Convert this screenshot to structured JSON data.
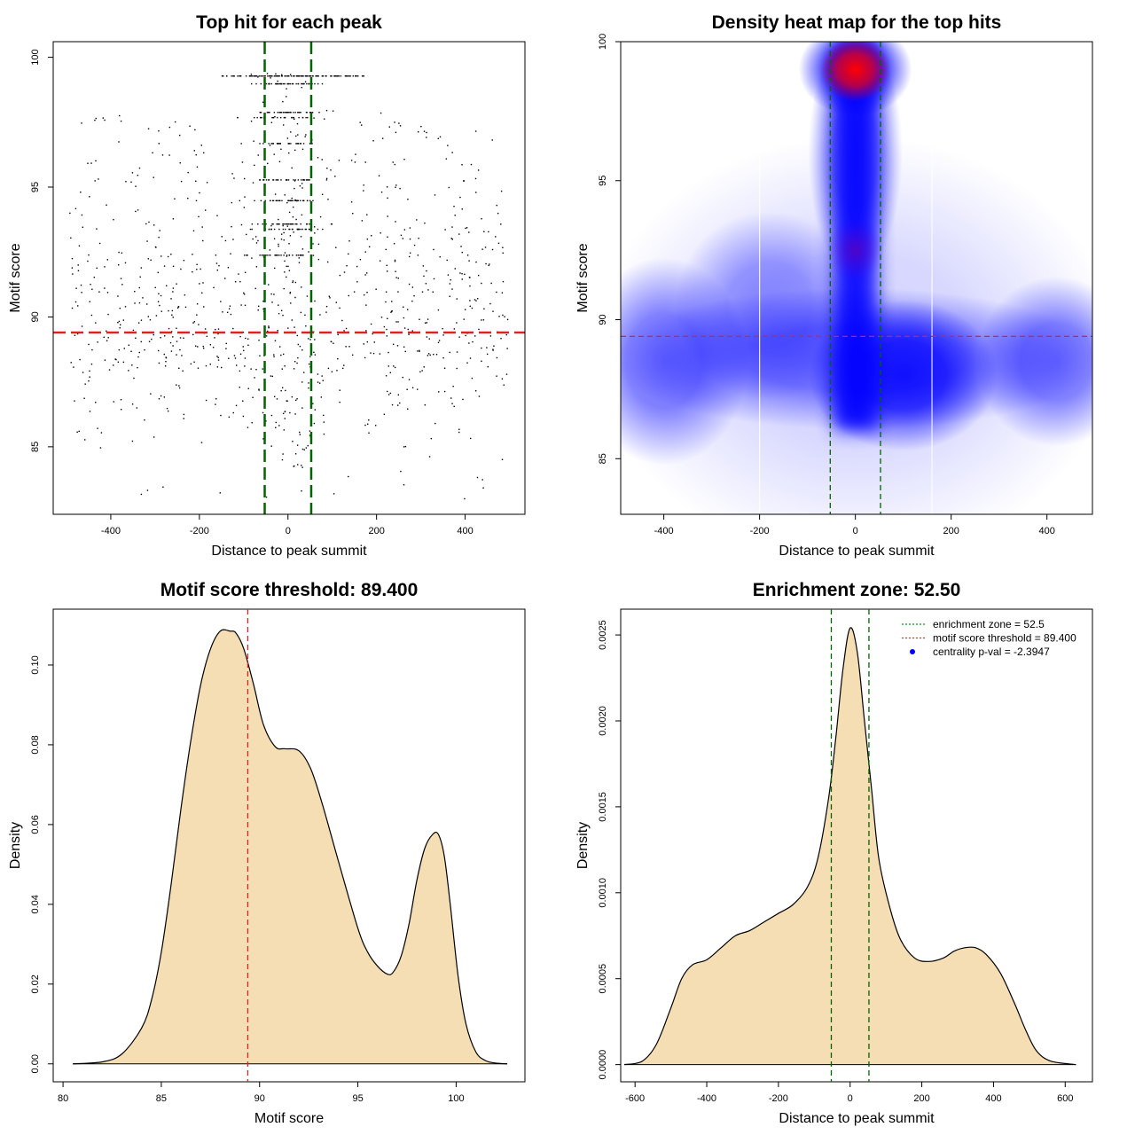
{
  "chart_data": [
    {
      "type": "scatter",
      "title": "Top hit for each peak",
      "xlabel": "Distance to peak summit",
      "ylabel": "Motif score",
      "xlim": [
        -530,
        535
      ],
      "ylim": [
        82.4,
        100.6
      ],
      "xticks": [
        "-400",
        "-200",
        "0",
        "200",
        "400"
      ],
      "xtick_values": [
        -400,
        -200,
        0,
        200,
        400
      ],
      "yticks": [
        "85",
        "90",
        "95",
        "100"
      ],
      "ytick_values": [
        85,
        90,
        95,
        100
      ],
      "threshold_y": 89.4,
      "threshold_color": "#dd2222",
      "zone_x": [
        -52.5,
        52.5
      ],
      "zone_color": "#006400",
      "point_count": 1400,
      "discrete_scores": [
        99.3,
        99.0,
        97.9,
        97.7,
        96.7,
        95.3,
        94.5,
        93.6,
        93.4,
        92.4
      ]
    },
    {
      "type": "heatmap",
      "title": "Density heat map for the top hits",
      "xlabel": "Distance to peak summit",
      "ylabel": "Motif score",
      "xlim": [
        -490,
        495
      ],
      "ylim": [
        83,
        100
      ],
      "xticks": [
        "-400",
        "-200",
        "0",
        "200",
        "400"
      ],
      "xtick_values": [
        -400,
        -200,
        0,
        200,
        400
      ],
      "yticks": [
        "85",
        "90",
        "95",
        "100"
      ],
      "ytick_values": [
        85,
        90,
        95,
        100
      ],
      "threshold_y": 89.4,
      "zone_x": [
        -52.5,
        52.5
      ],
      "white_lines_x": [
        -200,
        160
      ],
      "palette": [
        "#ffffff",
        "#0000ff",
        "#ff0000"
      ],
      "density_peaks": [
        {
          "x": 0,
          "y": 99.0,
          "level": "high"
        },
        {
          "x": 0,
          "y": 92.5,
          "level": "medium"
        },
        {
          "x": 100,
          "y": 88.0,
          "level": "low"
        },
        {
          "x": -400,
          "y": 88.5,
          "level": "low"
        },
        {
          "x": 420,
          "y": 88.5,
          "level": "low"
        }
      ]
    },
    {
      "type": "area",
      "title": "Motif score threshold: 89.400",
      "xlabel": "Motif score",
      "ylabel": "Density",
      "xlim": [
        79.5,
        103.5
      ],
      "ylim": [
        -0.0045,
        0.114
      ],
      "xticks": [
        "80",
        "85",
        "90",
        "95",
        "100"
      ],
      "xtick_values": [
        80,
        85,
        90,
        95,
        100
      ],
      "yticks": [
        "0.00",
        "0.02",
        "0.04",
        "0.06",
        "0.08",
        "0.10"
      ],
      "ytick_values": [
        0,
        0.02,
        0.04,
        0.06,
        0.08,
        0.1
      ],
      "fill_color": "#f5deb3",
      "threshold_x": 89.4,
      "x": [
        80.5,
        82,
        83,
        84,
        84.5,
        85,
        85.5,
        86,
        86.5,
        87,
        87.5,
        88,
        88.5,
        88.8,
        89.2,
        89.7,
        90.2,
        90.8,
        91.3,
        92,
        92.6,
        93.2,
        94,
        95,
        95.5,
        96,
        96.5,
        96.8,
        97.2,
        97.6,
        98,
        98.4,
        98.8,
        99.1,
        99.4,
        99.7,
        100.1,
        100.5,
        101,
        101.5,
        102,
        102.6
      ],
      "values": [
        0.0,
        0.0005,
        0.0025,
        0.009,
        0.016,
        0.028,
        0.045,
        0.064,
        0.081,
        0.095,
        0.104,
        0.1085,
        0.1085,
        0.108,
        0.104,
        0.095,
        0.085,
        0.0795,
        0.079,
        0.0785,
        0.074,
        0.065,
        0.051,
        0.034,
        0.028,
        0.0245,
        0.0225,
        0.023,
        0.027,
        0.035,
        0.046,
        0.054,
        0.0575,
        0.0575,
        0.052,
        0.04,
        0.022,
        0.01,
        0.003,
        0.0008,
        0.0002,
        0.0
      ]
    },
    {
      "type": "area",
      "title": "Enrichment zone: 52.50",
      "xlabel": "Distance to peak summit",
      "ylabel": "Density",
      "xlim": [
        -640,
        676
      ],
      "ylim": [
        -0.0001,
        0.00265
      ],
      "xticks": [
        "-600",
        "-400",
        "-200",
        "0",
        "200",
        "400",
        "600"
      ],
      "xtick_values": [
        -600,
        -400,
        -200,
        0,
        200,
        400,
        600
      ],
      "yticks": [
        "0.0000",
        "0.0005",
        "0.0010",
        "0.0015",
        "0.0020",
        "0.0025"
      ],
      "ytick_values": [
        0,
        0.0005,
        0.001,
        0.0015,
        0.002,
        0.0025
      ],
      "fill_color": "#f5deb3",
      "zone_x": [
        -52.5,
        52.5
      ],
      "x": [
        -630,
        -580,
        -540,
        -500,
        -470,
        -440,
        -400,
        -360,
        -320,
        -280,
        -240,
        -200,
        -160,
        -120,
        -90,
        -60,
        -40,
        -20,
        0,
        20,
        40,
        60,
        80,
        110,
        140,
        180,
        220,
        260,
        290,
        320,
        350,
        380,
        420,
        460,
        490,
        520,
        560,
        630
      ],
      "values": [
        0.0,
        2e-05,
        0.00012,
        0.00033,
        0.0005,
        0.00058,
        0.00061,
        0.00068,
        0.00075,
        0.00078,
        0.00083,
        0.00088,
        0.00093,
        0.00103,
        0.0012,
        0.00155,
        0.0019,
        0.0023,
        0.00254,
        0.0024,
        0.002,
        0.0016,
        0.0012,
        0.00092,
        0.00073,
        0.00062,
        0.0006,
        0.00062,
        0.00066,
        0.00068,
        0.00068,
        0.00064,
        0.00053,
        0.00035,
        0.0002,
        8e-05,
        2e-05,
        0.0
      ],
      "legend": [
        {
          "label": "enrichment zone = 52.5",
          "symbol": "dotted-line",
          "color": "#228b22"
        },
        {
          "label": "motif score threshold = 89.400",
          "symbol": "dotted-line",
          "color": "#dd3333"
        },
        {
          "label": "centrality p-val = -2.3947",
          "symbol": "point",
          "color": "#0000ff"
        }
      ],
      "legend_position": "top-right"
    }
  ]
}
